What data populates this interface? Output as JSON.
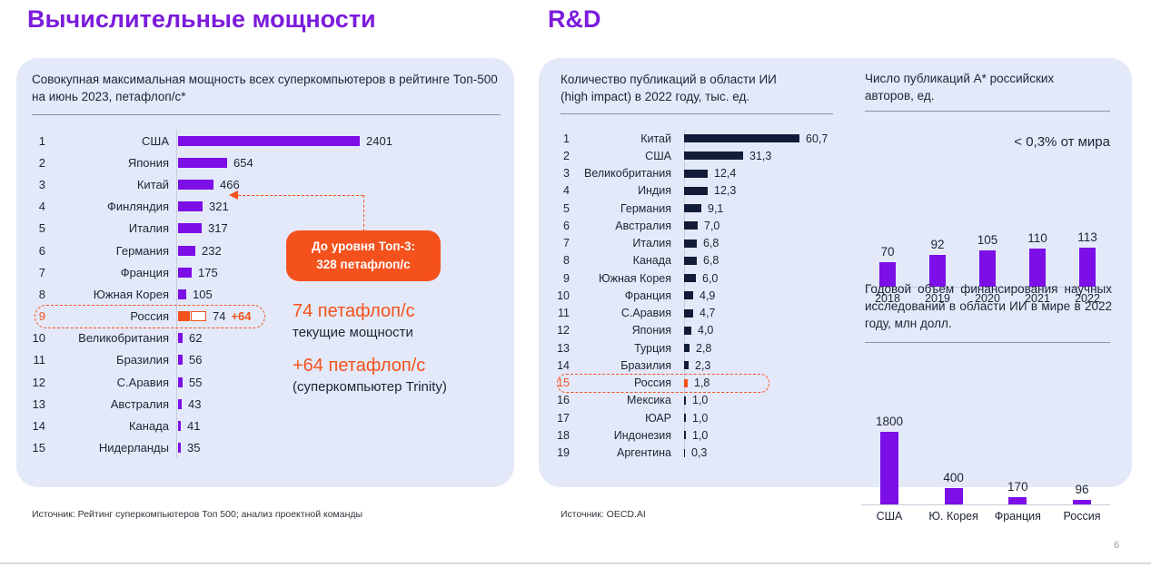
{
  "slide": {
    "left_title": "Вычислительные мощности",
    "right_title": "R&D",
    "page_number": "6",
    "sources": {
      "left": "Источник: Рейтинг суперкомпьютеров Топ 500; анализ проектной команды",
      "right": "Источник: OECD.AI"
    }
  },
  "colors": {
    "accent_purple": "#7B1BDB",
    "bar_purple": "#7C0EE8",
    "bar_navy": "#121C38",
    "highlight_orange": "#F5511D",
    "card_background": "#E3E9F8"
  },
  "chart_data": [
    {
      "type": "bar",
      "orientation": "horizontal",
      "title": "Совокупная максимальная мощность всех суперкомпьютеров в рейтинге Топ-500 на июнь 2023, петафлоп/с*",
      "xlim": [
        0,
        2401
      ],
      "rows": [
        {
          "rank": 1,
          "label": "США",
          "value": 2401,
          "display": "2401"
        },
        {
          "rank": 2,
          "label": "Япония",
          "value": 654,
          "display": "654"
        },
        {
          "rank": 3,
          "label": "Китай",
          "value": 466,
          "display": "466"
        },
        {
          "rank": 4,
          "label": "Финляндия",
          "value": 321,
          "display": "321"
        },
        {
          "rank": 5,
          "label": "Италия",
          "value": 317,
          "display": "317"
        },
        {
          "rank": 6,
          "label": "Германия",
          "value": 232,
          "display": "232"
        },
        {
          "rank": 7,
          "label": "Франция",
          "value": 175,
          "display": "175"
        },
        {
          "rank": 8,
          "label": "Южная Корея",
          "value": 105,
          "display": "105"
        },
        {
          "rank": 9,
          "label": "Россия",
          "value": 74,
          "display": "74",
          "extra_value": 64,
          "extra_display": "+64",
          "highlight": true
        },
        {
          "rank": 10,
          "label": "Великобритания",
          "value": 62,
          "display": "62"
        },
        {
          "rank": 11,
          "label": "Бразилия",
          "value": 56,
          "display": "56"
        },
        {
          "rank": 12,
          "label": "С.Аравия",
          "value": 55,
          "display": "55"
        },
        {
          "rank": 13,
          "label": "Австралия",
          "value": 43,
          "display": "43"
        },
        {
          "rank": 14,
          "label": "Канада",
          "value": 41,
          "display": "41"
        },
        {
          "rank": 15,
          "label": "Нидерланды",
          "value": 35,
          "display": "35"
        }
      ],
      "callout": {
        "line1": "До уровня Топ-3:",
        "line2": "328 петафлоп/с"
      },
      "annotations": [
        {
          "value": "74 петафлоп/с",
          "caption": "текущие мощности"
        },
        {
          "value": "+64 петафлоп/с",
          "caption": "(суперкомпьютер Trinity)"
        }
      ]
    },
    {
      "type": "bar",
      "orientation": "horizontal",
      "title": "Количество публикаций в области ИИ (high impact) в 2022 году, тыс. ед.",
      "xlim": [
        0,
        60.7
      ],
      "rows": [
        {
          "rank": 1,
          "label": "Китай",
          "value": 60.7,
          "display": "60,7"
        },
        {
          "rank": 2,
          "label": "США",
          "value": 31.3,
          "display": "31,3"
        },
        {
          "rank": 3,
          "label": "Великобритания",
          "value": 12.4,
          "display": "12,4"
        },
        {
          "rank": 4,
          "label": "Индия",
          "value": 12.3,
          "display": "12,3"
        },
        {
          "rank": 5,
          "label": "Германия",
          "value": 9.1,
          "display": "9,1"
        },
        {
          "rank": 6,
          "label": "Австралия",
          "value": 7.0,
          "display": "7,0"
        },
        {
          "rank": 7,
          "label": "Италия",
          "value": 6.8,
          "display": "6,8"
        },
        {
          "rank": 8,
          "label": "Канада",
          "value": 6.8,
          "display": "6,8"
        },
        {
          "rank": 9,
          "label": "Южная Корея",
          "value": 6.0,
          "display": "6,0"
        },
        {
          "rank": 10,
          "label": "Франция",
          "value": 4.9,
          "display": "4,9"
        },
        {
          "rank": 11,
          "label": "С.Аравия",
          "value": 4.7,
          "display": "4,7"
        },
        {
          "rank": 12,
          "label": "Япония",
          "value": 4.0,
          "display": "4,0"
        },
        {
          "rank": 13,
          "label": "Турция",
          "value": 2.8,
          "display": "2,8"
        },
        {
          "rank": 14,
          "label": "Бразилия",
          "value": 2.3,
          "display": "2,3"
        },
        {
          "rank": 15,
          "label": "Россия",
          "value": 1.8,
          "display": "1,8",
          "highlight": true
        },
        {
          "rank": 16,
          "label": "Мексика",
          "value": 1.0,
          "display": "1,0"
        },
        {
          "rank": 17,
          "label": "ЮАР",
          "value": 1.0,
          "display": "1,0"
        },
        {
          "rank": 18,
          "label": "Индонезия",
          "value": 1.0,
          "display": "1,0"
        },
        {
          "rank": 19,
          "label": "Аргентина",
          "value": 0.3,
          "display": "0,3"
        }
      ]
    },
    {
      "type": "bar",
      "orientation": "vertical",
      "title": "Число публикаций А* российских авторов, ед.",
      "annotation": "< 0,3% от мира",
      "categories": [
        "2018",
        "2019",
        "2020",
        "2021",
        "2022"
      ],
      "values": [
        70,
        92,
        105,
        110,
        113
      ],
      "ylim": [
        0,
        113
      ]
    },
    {
      "type": "bar",
      "orientation": "vertical",
      "title": "Годовой объем финансирования научных исследований в области ИИ        в мире в 2022 году, млн долл.",
      "categories": [
        "США",
        "Ю. Корея",
        "Франция",
        "Россия"
      ],
      "values": [
        1800,
        400,
        170,
        96
      ],
      "ylim": [
        0,
        1800
      ]
    }
  ]
}
